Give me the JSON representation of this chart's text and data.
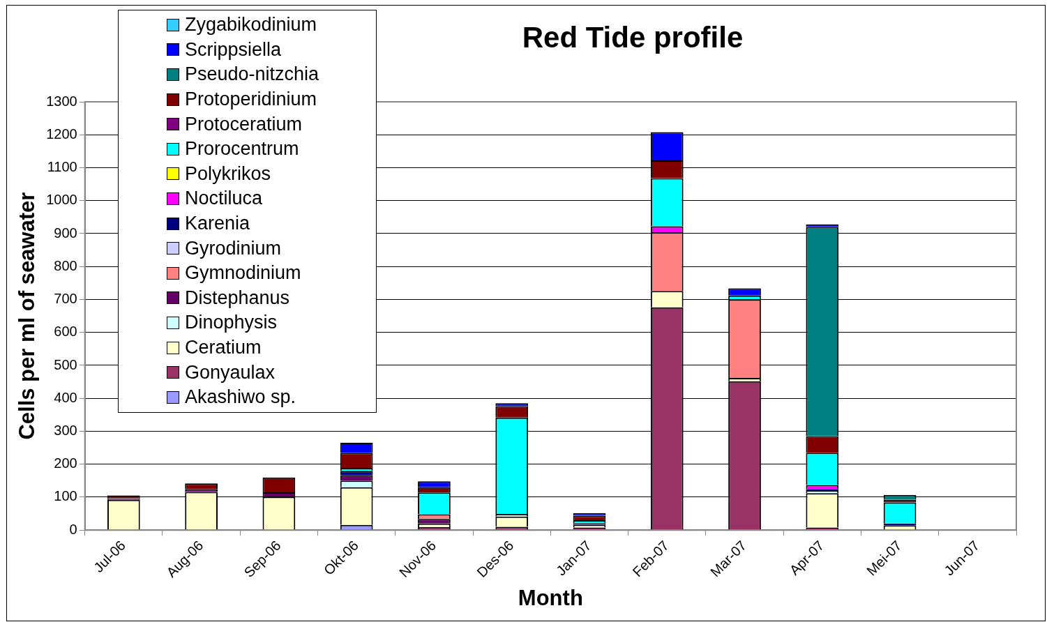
{
  "chart_data": {
    "type": "bar",
    "title": "Red Tide profile",
    "xlabel": "Month",
    "ylabel": "Cells per ml of seawater",
    "categories": [
      "Jul-06",
      "Aug-06",
      "Sep-06",
      "Okt-06",
      "Nov-06",
      "Des-06",
      "Jan-07",
      "Feb-07",
      "Mar-07",
      "Apr-07",
      "Mei-07",
      "Jun-07"
    ],
    "stacked": true,
    "ylim": [
      0,
      1300
    ],
    "yticks": [
      0,
      100,
      200,
      300,
      400,
      500,
      600,
      700,
      800,
      900,
      1000,
      1100,
      1200,
      1300
    ],
    "grid": "y",
    "legend": "top left",
    "series": [
      {
        "name": "Akashiwo sp.",
        "color": "#9999ff",
        "values": [
          0,
          0,
          0,
          16,
          0,
          0,
          0,
          0,
          0,
          0,
          0,
          0
        ]
      },
      {
        "name": "Gonyaulax",
        "color": "#993366",
        "values": [
          0,
          0,
          0,
          0,
          9,
          10,
          8,
          676,
          452,
          8,
          0,
          0
        ]
      },
      {
        "name": "Ceratium",
        "color": "#ffffcc",
        "values": [
          92,
          116,
          101,
          114,
          11,
          31,
          8,
          50,
          10,
          104,
          15,
          0
        ]
      },
      {
        "name": "Dinophysis",
        "color": "#ccffff",
        "values": [
          0,
          0,
          0,
          20,
          0,
          8,
          null,
          0,
          0,
          9,
          0,
          0
        ]
      },
      {
        "name": "Distephanus",
        "color": "#660066",
        "values": [
          5,
          8,
          14,
          17,
          14,
          0,
          0,
          0,
          0,
          0,
          0,
          0
        ]
      },
      {
        "name": "Gymnodinium",
        "color": "#ff8080",
        "values": [
          0,
          0,
          0,
          0,
          14,
          0,
          0,
          178,
          238,
          0,
          0,
          0
        ]
      },
      {
        "name": "Gyrodinium",
        "color": "#ccccff",
        "values": [
          0,
          0,
          0,
          0,
          0,
          0,
          0,
          0,
          0,
          0,
          0,
          0
        ]
      },
      {
        "name": "Karenia",
        "color": "#000080",
        "values": [
          0,
          0,
          0,
          13,
          0,
          0,
          5,
          0,
          0,
          4,
          5,
          0
        ]
      },
      {
        "name": "Noctiluca",
        "color": "#ff00ff",
        "values": [
          0,
          0,
          0,
          0,
          0,
          0,
          0,
          18,
          0,
          12,
          0,
          0
        ]
      },
      {
        "name": "Polykrikos",
        "color": "#ffff00",
        "values": [
          0,
          0,
          0,
          0,
          0,
          0,
          0,
          0,
          0,
          0,
          0,
          0
        ]
      },
      {
        "name": "Prorocentrum",
        "color": "#00ffff",
        "values": [
          0,
          0,
          0,
          9,
          66,
          293,
          9,
          146,
          12,
          98,
          64,
          0
        ]
      },
      {
        "name": "Protoceratium",
        "color": "#800080",
        "values": [
          0,
          0,
          0,
          0,
          0,
          0,
          0,
          0,
          0,
          0,
          0,
          0
        ]
      },
      {
        "name": "Protoperidinium",
        "color": "#800000",
        "values": [
          8,
          18,
          45,
          46,
          16,
          34,
          14,
          54,
          0,
          50,
          8,
          0
        ]
      },
      {
        "name": "Pseudo-nitzchia",
        "color": "#008080",
        "values": [
          0,
          0,
          0,
          0,
          0,
          0,
          0,
          0,
          0,
          635,
          15,
          0
        ]
      },
      {
        "name": "Scrippsiella",
        "color": "#0000ff",
        "values": [
          0,
          0,
          0,
          30,
          18,
          9,
          8,
          86,
          22,
          8,
          0,
          0
        ]
      },
      {
        "name": "Zygabikodinium",
        "color": "#33ccff",
        "values": [
          0,
          0,
          0,
          0,
          0,
          0,
          0,
          0,
          0,
          0,
          0,
          0
        ]
      }
    ]
  }
}
